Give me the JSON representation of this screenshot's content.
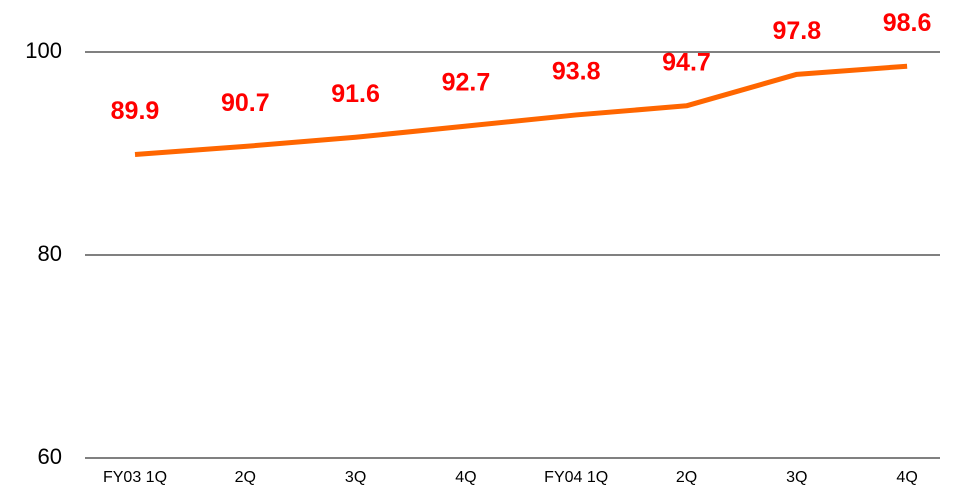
{
  "chart_data": {
    "type": "line",
    "categories": [
      "FY03 1Q",
      "2Q",
      "3Q",
      "4Q",
      "FY04 1Q",
      "2Q",
      "3Q",
      "4Q"
    ],
    "values": [
      89.9,
      90.7,
      91.6,
      92.7,
      93.8,
      94.7,
      97.8,
      98.6
    ],
    "color": "#ff6600",
    "label_color": "#ff0000",
    "ylim": [
      60,
      100
    ],
    "yticks": [
      60,
      80,
      100
    ],
    "grid": true
  }
}
